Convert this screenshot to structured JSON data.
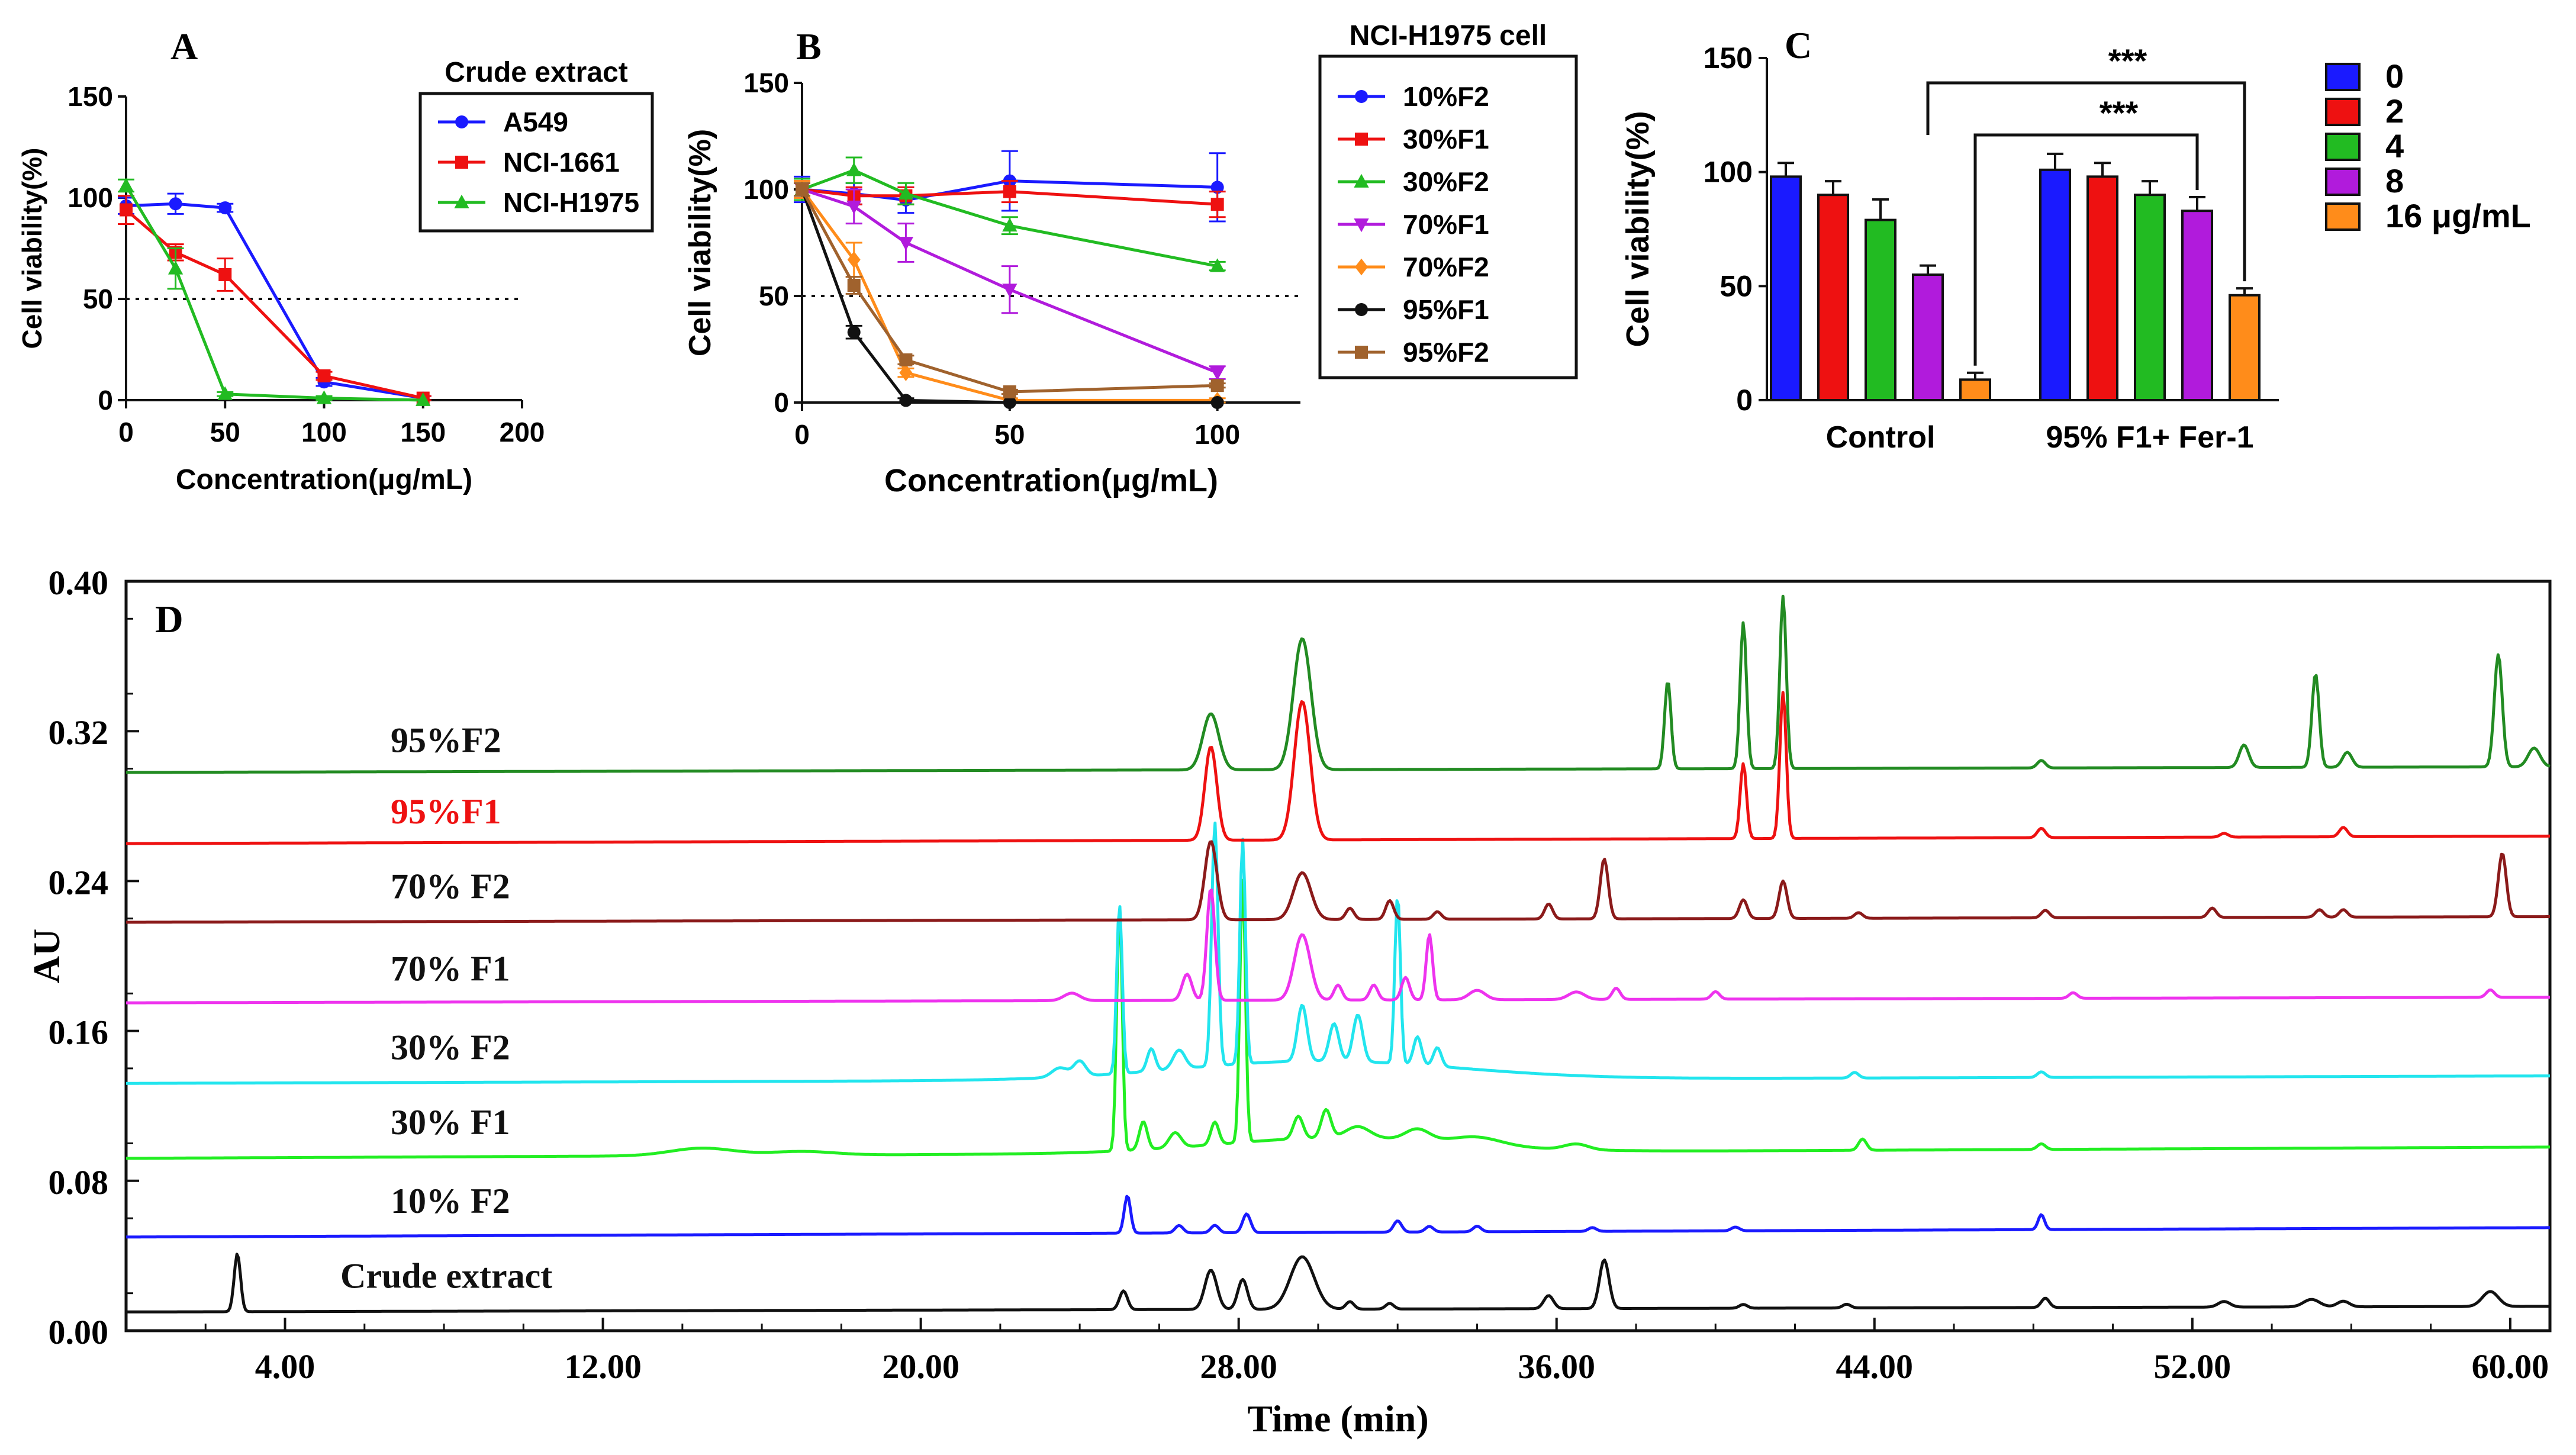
{
  "chart_data": [
    {
      "panel": "A",
      "type": "line",
      "title": "",
      "xlabel": "Concentration(μg/mL)",
      "ylabel": "Cell viability(%)",
      "xlim": [
        0,
        200
      ],
      "ylim": [
        0,
        150
      ],
      "xticks": [
        "0",
        "50",
        "100",
        "150",
        "200"
      ],
      "yticks": [
        "0",
        "50",
        "100",
        "150"
      ],
      "reference_line": 50,
      "legend_title": "Crude extract",
      "legend_position": "top-right",
      "series": [
        {
          "name": "A549",
          "color": "#1a1aff",
          "marker": "circle",
          "x": [
            0,
            25,
            50,
            100,
            150
          ],
          "y": [
            96,
            97,
            95,
            9,
            1
          ],
          "err": [
            4,
            5,
            2,
            2,
            1
          ]
        },
        {
          "name": "NCI-1661",
          "color": "#ee1111",
          "marker": "square",
          "x": [
            0,
            25,
            50,
            100,
            150
          ],
          "y": [
            94,
            73,
            62,
            12,
            1
          ],
          "err": [
            7,
            4,
            8,
            2,
            1
          ]
        },
        {
          "name": "NCI-H1975",
          "color": "#22bb22",
          "marker": "triangle",
          "x": [
            0,
            25,
            50,
            100,
            150
          ],
          "y": [
            106,
            65,
            3,
            1,
            0
          ],
          "err": [
            3,
            10,
            1,
            1,
            0
          ]
        }
      ]
    },
    {
      "panel": "B",
      "type": "line",
      "title": "",
      "xlabel": "Concentration(μg/mL)",
      "ylabel": "Cell viability(%)",
      "xlim": [
        0,
        120
      ],
      "ylim": [
        0,
        150
      ],
      "xticks": [
        "0",
        "50",
        "100"
      ],
      "yticks": [
        "0",
        "50",
        "100",
        "150"
      ],
      "reference_line": 50,
      "legend_title": "NCI-H1975 cell",
      "legend_position": "right",
      "series": [
        {
          "name": "10%F2",
          "color": "#1a1aff",
          "marker": "circle",
          "x": [
            0,
            12.5,
            25,
            50,
            100
          ],
          "y": [
            100,
            98,
            95,
            104,
            101
          ],
          "err": [
            6,
            5,
            6,
            14,
            16
          ]
        },
        {
          "name": "30%F1",
          "color": "#ee1111",
          "marker": "square",
          "x": [
            0,
            12.5,
            25,
            50,
            100
          ],
          "y": [
            100,
            97,
            97,
            99,
            93
          ],
          "err": [
            5,
            4,
            4,
            5,
            6
          ]
        },
        {
          "name": "30%F2",
          "color": "#22bb22",
          "marker": "triangle",
          "x": [
            0,
            12.5,
            25,
            50,
            100
          ],
          "y": [
            100,
            109,
            98,
            83,
            64
          ],
          "err": [
            5,
            6,
            5,
            4,
            2
          ]
        },
        {
          "name": "70%F1",
          "color": "#b11bdc",
          "marker": "triangle-down",
          "x": [
            0,
            12.5,
            25,
            50,
            100
          ],
          "y": [
            100,
            92,
            75,
            53,
            14
          ],
          "err": [
            4,
            8,
            9,
            11,
            3
          ]
        },
        {
          "name": "70%F2",
          "color": "#ff8c1a",
          "marker": "diamond",
          "x": [
            0,
            12.5,
            25,
            50,
            100
          ],
          "y": [
            100,
            67,
            14,
            1,
            1
          ],
          "err": [
            4,
            8,
            2,
            1,
            1
          ]
        },
        {
          "name": "95%F1",
          "color": "#111111",
          "marker": "circle",
          "x": [
            0,
            12.5,
            25,
            50,
            100
          ],
          "y": [
            100,
            33,
            1,
            0,
            0
          ],
          "err": [
            3,
            3,
            1,
            0,
            0
          ]
        },
        {
          "name": "95%F2",
          "color": "#a0622d",
          "marker": "square",
          "x": [
            0,
            12.5,
            25,
            50,
            100
          ],
          "y": [
            100,
            55,
            20,
            5,
            8
          ],
          "err": [
            3,
            4,
            2,
            1,
            1
          ]
        }
      ]
    },
    {
      "panel": "C",
      "type": "bar",
      "title": "",
      "xlabel": "",
      "ylabel": "Cell viability(%)",
      "ylim": [
        0,
        150
      ],
      "yticks": [
        "0",
        "50",
        "100",
        "150"
      ],
      "categories": [
        "Control",
        "95% F1+ Fer-1"
      ],
      "legend_position": "right",
      "series": [
        {
          "name": "0",
          "color": "#1a1aff",
          "values": [
            98,
            101
          ],
          "err": [
            6,
            7
          ]
        },
        {
          "name": "2",
          "color": "#ee1111",
          "values": [
            90,
            98
          ],
          "err": [
            6,
            6
          ]
        },
        {
          "name": "4",
          "color": "#22bb22",
          "values": [
            79,
            90
          ],
          "err": [
            9,
            6
          ]
        },
        {
          "name": "8",
          "color": "#b11bdc",
          "values": [
            55,
            83
          ],
          "err": [
            4,
            6
          ]
        },
        {
          "name": "16 μg/mL",
          "color": "#ff8c1a",
          "values": [
            9,
            46
          ],
          "err": [
            3,
            3
          ]
        }
      ],
      "significance": [
        {
          "label": "***",
          "from": "Control 16 μg/mL",
          "to": "95% F1+ Fer-1 8"
        },
        {
          "label": "***",
          "from": "Control 16 μg/mL",
          "to": "95% F1+ Fer-1 16 μg/mL"
        }
      ]
    },
    {
      "panel": "D",
      "type": "line",
      "title": "",
      "xlabel": "Time (min)",
      "ylabel": "AU",
      "xlim": [
        0,
        61
      ],
      "ylim": [
        0,
        0.4
      ],
      "xticks": [
        "4.00",
        "12.00",
        "20.00",
        "28.00",
        "36.00",
        "44.00",
        "52.00",
        "60.00"
      ],
      "yticks": [
        "0.00",
        "0.08",
        "0.16",
        "0.24",
        "0.32",
        "0.40"
      ],
      "series": [
        {
          "name": "Crude extract",
          "color": "#111111",
          "baseline": 0.01,
          "slope": 0.003,
          "peaks": [
            [
              2.8,
              0.031,
              0.08
            ],
            [
              25.1,
              0.01,
              0.1
            ],
            [
              27.3,
              0.021,
              0.15
            ],
            [
              28.1,
              0.016,
              0.12
            ],
            [
              29.6,
              0.028,
              0.3
            ],
            [
              30.8,
              0.004,
              0.1
            ],
            [
              31.8,
              0.003,
              0.1
            ],
            [
              35.8,
              0.007,
              0.12
            ],
            [
              37.2,
              0.026,
              0.12
            ],
            [
              40.7,
              0.002,
              0.1
            ],
            [
              43.3,
              0.002,
              0.1
            ],
            [
              48.3,
              0.005,
              0.1
            ],
            [
              52.8,
              0.003,
              0.15
            ],
            [
              55.0,
              0.004,
              0.2
            ],
            [
              55.8,
              0.003,
              0.15
            ],
            [
              59.5,
              0.008,
              0.2
            ]
          ]
        },
        {
          "name": "10% F2",
          "color": "#1a1aff",
          "baseline": 0.05,
          "slope": 0.005,
          "peaks": [
            [
              25.2,
              0.02,
              0.08
            ],
            [
              26.5,
              0.004,
              0.1
            ],
            [
              27.4,
              0.004,
              0.1
            ],
            [
              28.2,
              0.01,
              0.1
            ],
            [
              32.0,
              0.006,
              0.1
            ],
            [
              32.8,
              0.003,
              0.1
            ],
            [
              34.0,
              0.003,
              0.1
            ],
            [
              36.9,
              0.002,
              0.1
            ],
            [
              40.5,
              0.002,
              0.1
            ],
            [
              48.2,
              0.008,
              0.08
            ]
          ]
        },
        {
          "name": "30% F1",
          "color": "#22ee22",
          "baseline": 0.092,
          "slope": 0.006,
          "peaks": [
            [
              14.5,
              0.004,
              0.8
            ],
            [
              17.0,
              0.002,
              0.8
            ],
            [
              25.0,
              0.13,
              0.07
            ],
            [
              25.6,
              0.015,
              0.1
            ],
            [
              26.4,
              0.008,
              0.15
            ],
            [
              27.4,
              0.012,
              0.1
            ],
            [
              28.1,
              0.14,
              0.07
            ],
            [
              29.5,
              0.012,
              0.12
            ],
            [
              30.2,
              0.015,
              0.12
            ],
            [
              31.0,
              0.006,
              0.3
            ],
            [
              32.5,
              0.006,
              0.3
            ],
            [
              34.0,
              0.004,
              0.6
            ],
            [
              36.5,
              0.003,
              0.3
            ],
            [
              43.7,
              0.006,
              0.1
            ],
            [
              48.2,
              0.003,
              0.1
            ]
          ],
          "broad": [
            [
              30.5,
              0.008,
              3.0
            ]
          ]
        },
        {
          "name": "30% F2",
          "color": "#22e5ee",
          "baseline": 0.132,
          "slope": 0.004,
          "peaks": [
            [
              23.5,
              0.005,
              0.2
            ],
            [
              24.0,
              0.008,
              0.15
            ],
            [
              25.0,
              0.09,
              0.07
            ],
            [
              25.8,
              0.012,
              0.1
            ],
            [
              26.5,
              0.01,
              0.15
            ],
            [
              27.4,
              0.13,
              0.08
            ],
            [
              28.1,
              0.12,
              0.07
            ],
            [
              29.6,
              0.03,
              0.12
            ],
            [
              30.4,
              0.02,
              0.12
            ],
            [
              31.0,
              0.025,
              0.12
            ],
            [
              32.0,
              0.09,
              0.07
            ],
            [
              32.5,
              0.015,
              0.1
            ],
            [
              33.0,
              0.01,
              0.1
            ],
            [
              43.5,
              0.003,
              0.1
            ],
            [
              48.2,
              0.003,
              0.1
            ]
          ],
          "broad": [
            [
              30.0,
              0.01,
              3.5
            ]
          ]
        },
        {
          "name": "70% F1",
          "color": "#ee33ee",
          "baseline": 0.175,
          "slope": 0.003,
          "peaks": [
            [
              23.8,
              0.004,
              0.2
            ],
            [
              26.7,
              0.014,
              0.12
            ],
            [
              27.3,
              0.06,
              0.1
            ],
            [
              29.6,
              0.035,
              0.2
            ],
            [
              30.5,
              0.008,
              0.1
            ],
            [
              31.4,
              0.008,
              0.1
            ],
            [
              32.2,
              0.012,
              0.1
            ],
            [
              32.8,
              0.035,
              0.08
            ],
            [
              34.0,
              0.005,
              0.2
            ],
            [
              36.5,
              0.004,
              0.2
            ],
            [
              37.5,
              0.006,
              0.1
            ],
            [
              40.0,
              0.004,
              0.1
            ],
            [
              49.0,
              0.003,
              0.1
            ],
            [
              59.5,
              0.004,
              0.1
            ]
          ]
        },
        {
          "name": "70% F2",
          "color": "#8b1a1a",
          "baseline": 0.218,
          "slope": 0.003,
          "peaks": [
            [
              27.3,
              0.042,
              0.15
            ],
            [
              29.6,
              0.025,
              0.22
            ],
            [
              30.8,
              0.006,
              0.1
            ],
            [
              31.8,
              0.01,
              0.1
            ],
            [
              33.0,
              0.004,
              0.1
            ],
            [
              35.8,
              0.008,
              0.1
            ],
            [
              37.2,
              0.032,
              0.1
            ],
            [
              40.7,
              0.01,
              0.1
            ],
            [
              41.7,
              0.02,
              0.1
            ],
            [
              43.6,
              0.003,
              0.1
            ],
            [
              48.3,
              0.004,
              0.1
            ],
            [
              52.5,
              0.005,
              0.1
            ],
            [
              55.2,
              0.004,
              0.1
            ],
            [
              55.8,
              0.004,
              0.1
            ],
            [
              59.8,
              0.034,
              0.1
            ]
          ]
        },
        {
          "name": "95%F1",
          "color": "#ee1111",
          "baseline": 0.26,
          "slope": 0.004,
          "peaks": [
            [
              27.3,
              0.05,
              0.15
            ],
            [
              29.6,
              0.074,
              0.2
            ],
            [
              40.7,
              0.04,
              0.08
            ],
            [
              41.7,
              0.078,
              0.08
            ],
            [
              48.2,
              0.005,
              0.1
            ],
            [
              52.8,
              0.002,
              0.1
            ],
            [
              55.8,
              0.005,
              0.1
            ]
          ]
        },
        {
          "name": "95%F2",
          "color": "#228b22",
          "baseline": 0.298,
          "slope": 0.003,
          "peaks": [
            [
              27.3,
              0.03,
              0.2
            ],
            [
              29.6,
              0.07,
              0.22
            ],
            [
              38.8,
              0.047,
              0.08
            ],
            [
              40.7,
              0.078,
              0.08
            ],
            [
              41.7,
              0.092,
              0.08
            ],
            [
              48.2,
              0.004,
              0.1
            ],
            [
              53.3,
              0.012,
              0.12
            ],
            [
              55.1,
              0.05,
              0.09
            ],
            [
              55.9,
              0.008,
              0.12
            ],
            [
              59.7,
              0.06,
              0.1
            ],
            [
              60.6,
              0.01,
              0.15
            ]
          ]
        }
      ],
      "trace_labels": [
        {
          "name": "95%F2",
          "at_y": 0.3,
          "color": "#111111"
        },
        {
          "name": "95%F1",
          "at_y": 0.262,
          "color": "#ee1111"
        },
        {
          "name": "70% F2",
          "at_y": 0.222,
          "color": "#111111"
        },
        {
          "name": "70% F1",
          "at_y": 0.178,
          "color": "#111111"
        },
        {
          "name": "30% F2",
          "at_y": 0.136,
          "color": "#111111"
        },
        {
          "name": "30% F1",
          "at_y": 0.096,
          "color": "#111111"
        },
        {
          "name": "10% F2",
          "at_y": 0.054,
          "color": "#111111"
        },
        {
          "name": "Crude extract",
          "at_y": 0.014,
          "color": "#111111"
        }
      ]
    }
  ]
}
